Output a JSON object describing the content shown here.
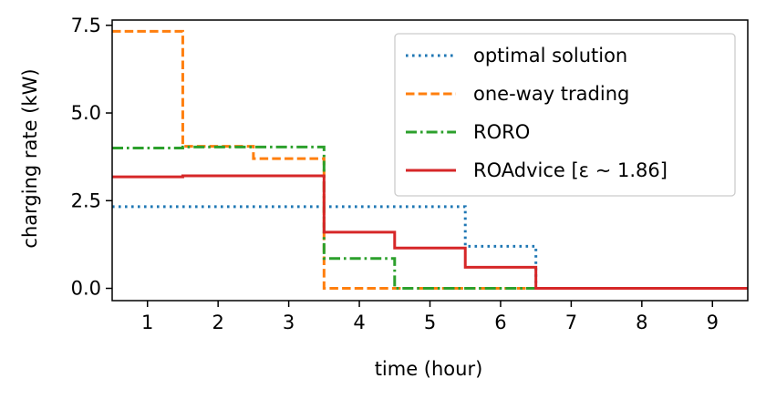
{
  "chart_data": {
    "type": "line",
    "step": "mid",
    "xlabel": "time (hour)",
    "ylabel": "charging rate (kW)",
    "xlim": [
      0.5,
      9.5
    ],
    "ylim": [
      -0.35,
      7.65
    ],
    "xticks": [
      1,
      2,
      3,
      4,
      5,
      6,
      7,
      8,
      9
    ],
    "yticks": [
      0.0,
      2.5,
      5.0,
      7.5
    ],
    "xtick_labels": [
      "1",
      "2",
      "3",
      "4",
      "5",
      "6",
      "7",
      "8",
      "9"
    ],
    "ytick_labels": [
      "0.0",
      "2.5",
      "5.0",
      "7.5"
    ],
    "grid": false,
    "legend_position": "upper-right",
    "x": [
      1,
      2,
      3,
      4,
      5,
      6,
      7,
      8,
      9
    ],
    "series": [
      {
        "name": "optimal solution",
        "style": "dotted",
        "color": "#1f77b4",
        "values": [
          2.33,
          2.33,
          2.33,
          2.33,
          2.33,
          1.2,
          0.0,
          0.0,
          0.0
        ]
      },
      {
        "name": "one-way trading",
        "style": "dashed",
        "color": "#ff7f0e",
        "values": [
          7.33,
          4.05,
          3.7,
          0.0,
          0.0,
          0.0,
          0.0,
          0.0,
          0.0
        ]
      },
      {
        "name": "RORO",
        "style": "dashdot",
        "color": "#2ca02c",
        "values": [
          4.0,
          4.03,
          4.03,
          0.85,
          0.0,
          0.0,
          0.0,
          0.0,
          0.0
        ]
      },
      {
        "name": "ROAdvice [ε ∼ 1.86]",
        "style": "solid",
        "color": "#d62728",
        "values": [
          3.18,
          3.21,
          3.21,
          1.6,
          1.15,
          0.6,
          0.0,
          0.0,
          0.0
        ]
      }
    ]
  }
}
